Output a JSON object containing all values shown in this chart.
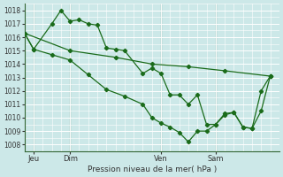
{
  "background_color": "#cce8e8",
  "grid_color": "#b0d8d8",
  "line_color": "#1a6b1a",
  "title": "Pression niveau de la mer( hPa )",
  "ylim": [
    1007.5,
    1018.5
  ],
  "yticks": [
    1008,
    1009,
    1010,
    1011,
    1012,
    1013,
    1014,
    1015,
    1016,
    1017,
    1018
  ],
  "xlim": [
    0,
    28
  ],
  "xtick_positions": [
    1,
    5,
    15,
    21
  ],
  "xlabels": [
    "Jeu",
    "Dim",
    "Ven",
    "Sam"
  ],
  "vline_positions": [
    1,
    5,
    15,
    21
  ],
  "series1_x": [
    0,
    5,
    10,
    14,
    18,
    22,
    27
  ],
  "series1_y": [
    1016.3,
    1015.0,
    1014.5,
    1014.0,
    1013.8,
    1013.5,
    1013.1
  ],
  "series2_x": [
    0,
    1,
    3,
    4,
    5,
    6,
    7,
    8,
    9,
    10,
    11,
    13,
    14,
    15,
    16,
    17,
    18,
    19,
    20,
    21,
    22,
    23,
    24,
    25,
    26,
    27
  ],
  "series2_y": [
    1016.3,
    1015.1,
    1017.0,
    1018.0,
    1017.2,
    1017.3,
    1017.0,
    1016.9,
    1015.2,
    1015.1,
    1015.0,
    1013.3,
    1013.7,
    1013.3,
    1011.7,
    1011.7,
    1011.0,
    1011.7,
    1009.5,
    1009.5,
    1010.3,
    1010.4,
    1009.3,
    1009.2,
    1012.0,
    1013.1
  ],
  "series3_x": [
    0,
    1,
    3,
    5,
    7,
    9,
    11,
    13,
    14,
    15,
    16,
    17,
    18,
    19,
    20,
    21,
    22,
    23,
    24,
    25,
    26,
    27
  ],
  "series3_y": [
    1016.3,
    1015.1,
    1014.7,
    1014.3,
    1013.2,
    1012.1,
    1011.6,
    1011.0,
    1010.0,
    1009.6,
    1009.3,
    1008.9,
    1008.2,
    1009.0,
    1009.0,
    1009.5,
    1010.2,
    1010.4,
    1009.3,
    1009.2,
    1010.5,
    1013.1
  ]
}
